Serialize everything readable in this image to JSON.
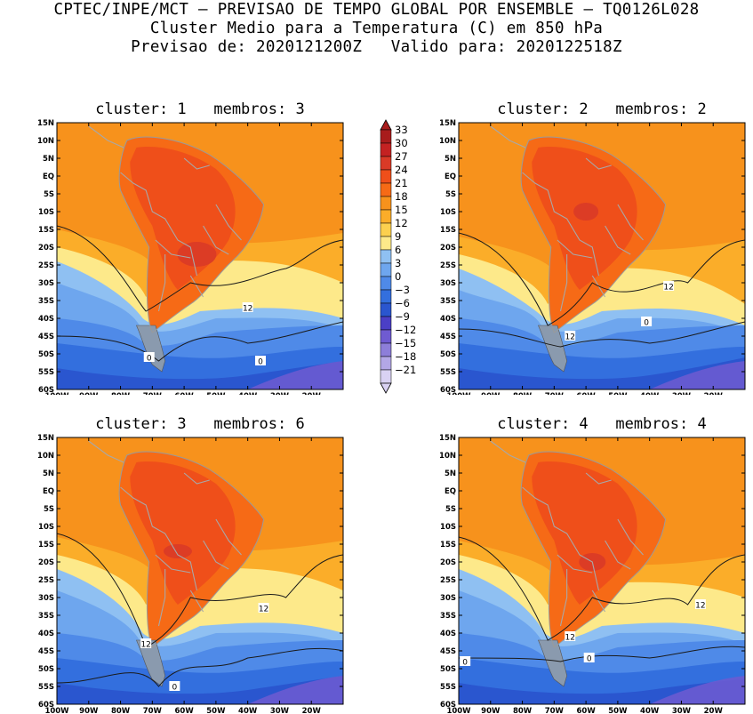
{
  "header": {
    "line1": "CPTEC/INPE/MCT – PREVISAO DE TEMPO GLOBAL POR ENSEMBLE – TQ0126L028",
    "line2": "Cluster Medio para a Temperatura (C) em 850 hPa",
    "line3": "Previsao de: 2020121200Z   Valido para: 2020122518Z"
  },
  "lat_ticks": [
    "15N",
    "10N",
    "5N",
    "EQ",
    "5S",
    "10S",
    "15S",
    "20S",
    "25S",
    "30S",
    "35S",
    "40S",
    "45S",
    "50S",
    "55S",
    "60S"
  ],
  "lon_ticks": [
    "100W",
    "90W",
    "80W",
    "70W",
    "60W",
    "50W",
    "40W",
    "30W",
    "20W"
  ],
  "colorbar": {
    "labels": [
      "33",
      "30",
      "27",
      "24",
      "21",
      "18",
      "15",
      "12",
      "9",
      "6",
      "3",
      "0",
      "-3",
      "-6",
      "-9",
      "-12",
      "-15",
      "-18",
      "-21"
    ],
    "colors": [
      "#a81c1c",
      "#c42222",
      "#d93a27",
      "#ef4f1a",
      "#f66a16",
      "#f7921c",
      "#fbad29",
      "#fcd04f",
      "#fde98a",
      "#8fc0f2",
      "#6ea6ee",
      "#4f8ae8",
      "#336fde",
      "#2a56cf",
      "#4b3fc6",
      "#6f5bd1",
      "#8d7ed9",
      "#b3a7e6",
      "#d9d2f3"
    ]
  },
  "panels": [
    {
      "title": "cluster: 1   membros: 3",
      "contour_labels": [
        "12",
        "0",
        "0"
      ]
    },
    {
      "title": "cluster: 2   membros: 2",
      "contour_labels": [
        "12",
        "12",
        "0"
      ]
    },
    {
      "title": "cluster: 3   membros: 6",
      "contour_labels": [
        "12",
        "12",
        "0"
      ]
    },
    {
      "title": "cluster: 4   membros: 4",
      "contour_labels": [
        "12",
        "12",
        "0",
        "0"
      ]
    }
  ]
}
